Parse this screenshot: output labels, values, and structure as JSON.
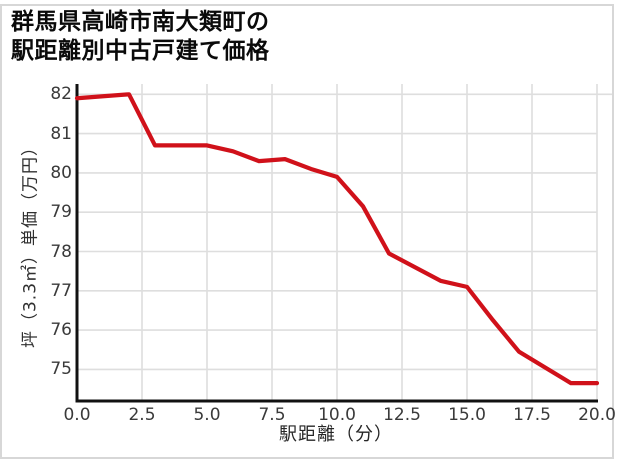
{
  "title": "群馬県高崎市南大類町の\n駅距離別中古戸建て価格",
  "chart_data": {
    "type": "line",
    "title": "群馬県高崎市南大類町の駅距離別中古戸建て価格",
    "xlabel": "駅距離（分）",
    "ylabel": "坪（3.3㎡）単価（万円）",
    "x": [
      0,
      1,
      2,
      3,
      4,
      5,
      6,
      7,
      8,
      9,
      10,
      11,
      12,
      13,
      14,
      15,
      16,
      17,
      18,
      19,
      20
    ],
    "values": [
      81.9,
      81.95,
      82.0,
      80.7,
      80.7,
      80.7,
      80.55,
      80.3,
      80.35,
      80.1,
      79.9,
      79.15,
      77.95,
      77.6,
      77.25,
      77.1,
      76.25,
      75.45,
      75.05,
      74.65,
      74.65
    ],
    "x_tick_labels": [
      "0.0",
      "2.5",
      "5.0",
      "7.5",
      "10.0",
      "12.5",
      "15.0",
      "17.5",
      "20.0"
    ],
    "x_tick_values": [
      0,
      2.5,
      5,
      7.5,
      10,
      12.5,
      15,
      17.5,
      20
    ],
    "y_tick_labels": [
      "82",
      "81",
      "80",
      "79",
      "78",
      "77",
      "76",
      "75"
    ],
    "y_tick_values": [
      82,
      81,
      80,
      79,
      78,
      77,
      76,
      75
    ],
    "xlim": [
      0,
      20
    ],
    "ylim": [
      74.2,
      82.3
    ],
    "grid": true,
    "legend": false,
    "line_color": "#d0111a",
    "grid_color": "#dedede",
    "axis_color": "#111111"
  }
}
